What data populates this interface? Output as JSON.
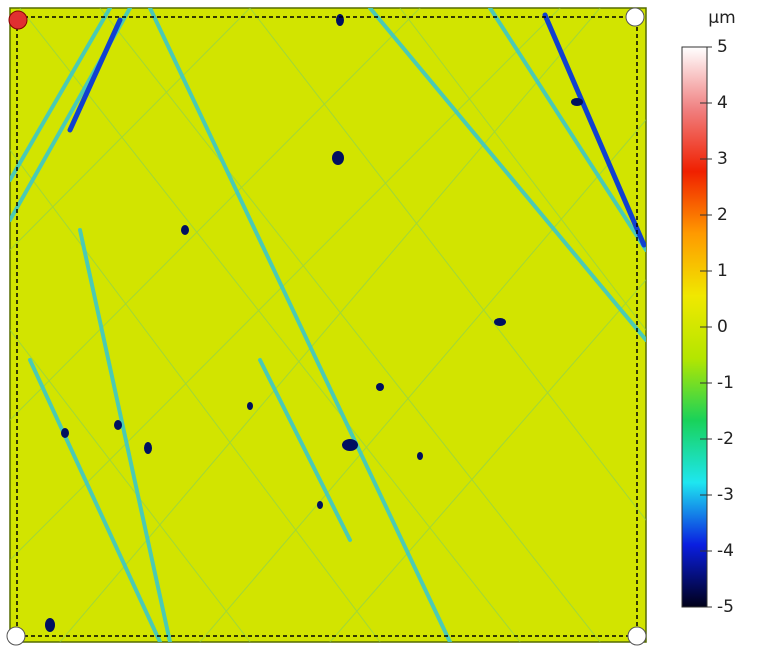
{
  "chart_data": {
    "type": "heatmap",
    "colorbar": {
      "label": "µm",
      "lim": [
        -5,
        5
      ],
      "ticks": [
        5,
        4,
        3,
        2,
        1,
        0,
        -1,
        -2,
        -3,
        -4,
        -5
      ],
      "colorscale": [
        "#000018",
        "#0a1ee0",
        "#1ee6f0",
        "#19d25a",
        "#b4e600",
        "#f0e800",
        "#ff9a00",
        "#f02000",
        "#f08080",
        "#ffffff"
      ]
    }
  }
}
